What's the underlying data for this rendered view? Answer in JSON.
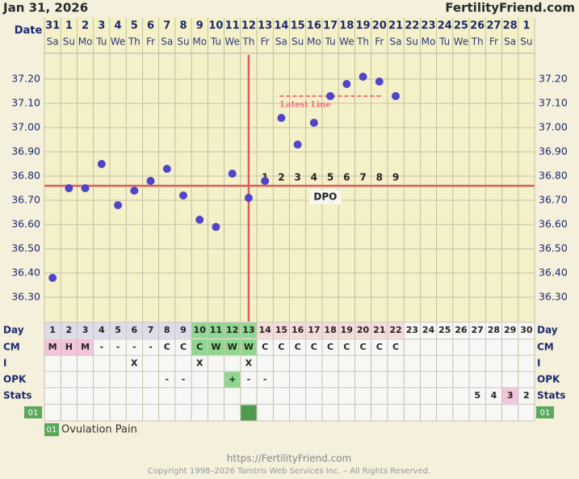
{
  "header": {
    "date": "Jan 31, 2026",
    "site": "FertilityFriend.com"
  },
  "chart_data": {
    "type": "line",
    "x_label": "Date",
    "dates": [
      31,
      1,
      2,
      3,
      4,
      5,
      6,
      7,
      8,
      9,
      10,
      11,
      12,
      13,
      14,
      15,
      16,
      17,
      18,
      19,
      20,
      21,
      22,
      23,
      24,
      25,
      26,
      27,
      28,
      1
    ],
    "weekdays": [
      "Sa",
      "Su",
      "Mo",
      "Tu",
      "We",
      "Th",
      "Fr",
      "Sa",
      "Su",
      "Mo",
      "Tu",
      "We",
      "Th",
      "Fr",
      "Sa",
      "Su",
      "Mo",
      "Tu",
      "We",
      "Th",
      "Fr",
      "Sa",
      "Su",
      "Mo",
      "Tu",
      "We",
      "Th",
      "Fr",
      "Sa",
      "Su"
    ],
    "categories": [
      1,
      2,
      3,
      4,
      5,
      6,
      7,
      8,
      9,
      10,
      11,
      12,
      13,
      14,
      15,
      16,
      17,
      18,
      19,
      20,
      21,
      22,
      23,
      24,
      25,
      26,
      27,
      28,
      29,
      30
    ],
    "series": [
      {
        "color": "#4f45c9",
        "values": [
          36.38,
          36.75,
          36.75,
          36.85,
          36.68,
          36.74,
          36.78,
          36.83,
          36.72,
          36.62,
          36.59,
          36.81,
          36.71,
          36.78,
          37.04,
          36.93,
          37.02,
          37.13,
          37.18,
          37.21,
          37.19,
          37.13,
          null,
          null,
          null,
          null,
          null,
          null,
          null,
          null
        ]
      }
    ],
    "ylim": [
      36.2,
      37.3
    ],
    "yticks": [
      {
        "value": 36.3,
        "label": "36.30"
      },
      {
        "value": 36.4,
        "label": "36.40"
      },
      {
        "value": 36.5,
        "label": "36.50"
      },
      {
        "value": 36.6,
        "label": "36.60"
      },
      {
        "value": 36.7,
        "label": "36.70"
      },
      {
        "value": 36.8,
        "label": "36.80"
      },
      {
        "value": 36.9,
        "label": "36.90"
      },
      {
        "value": 37.0,
        "label": "37.00"
      },
      {
        "value": 37.1,
        "label": "37.10"
      },
      {
        "value": 37.2,
        "label": "37.20"
      }
    ],
    "grid": true,
    "coverline": 36.76,
    "ovulation_day": 13,
    "fertile_window": [
      10,
      13
    ],
    "dpo": [
      1,
      2,
      3,
      4,
      5,
      6,
      7,
      8,
      9
    ],
    "dpo_label": "DPO",
    "latest_line": {
      "label": "Latest Line",
      "value": 37.13
    }
  },
  "table": {
    "row_labels": [
      "Day",
      "CM",
      "I",
      "OPK",
      "Stats"
    ],
    "cm": [
      "M",
      "H",
      "M",
      "-",
      "-",
      "-",
      "-",
      "C",
      "C",
      "C",
      "W",
      "W",
      "W",
      "C",
      "C",
      "C",
      "C",
      "C",
      "C",
      "C",
      "C",
      "C",
      null,
      null,
      null,
      null,
      null,
      null,
      null,
      null
    ],
    "intercourse": [
      null,
      null,
      null,
      null,
      null,
      "X",
      null,
      null,
      null,
      "X",
      null,
      null,
      "X",
      null,
      null,
      null,
      null,
      null,
      null,
      null,
      null,
      null,
      null,
      null,
      null,
      null,
      null,
      null,
      null,
      null
    ],
    "opk": [
      null,
      null,
      null,
      null,
      null,
      null,
      null,
      "-",
      "-",
      null,
      null,
      "+",
      "-",
      "-",
      null,
      null,
      null,
      null,
      null,
      null,
      null,
      null,
      null,
      null,
      null,
      null,
      null,
      null,
      null,
      null
    ],
    "stats": [
      null,
      null,
      null,
      null,
      null,
      null,
      null,
      null,
      null,
      null,
      null,
      null,
      null,
      null,
      null,
      null,
      null,
      null,
      null,
      null,
      null,
      null,
      null,
      null,
      null,
      null,
      5,
      4,
      3,
      2
    ]
  },
  "custom": {
    "code": "01",
    "label": "Ovulation Pain",
    "days": [
      13
    ]
  },
  "footer": {
    "url": "https://FertilityFriend.com",
    "copyright": "Copyright 1998–2026 Tamtris Web Services Inc. – All Rights Reserved."
  }
}
